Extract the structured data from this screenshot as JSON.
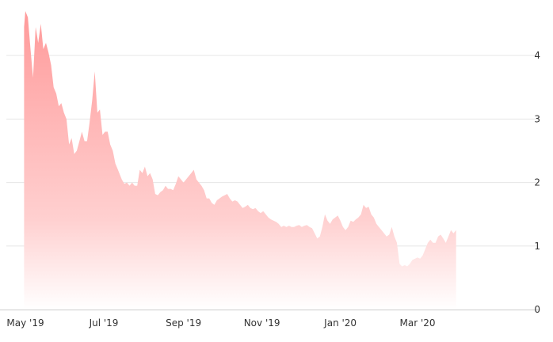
{
  "chart_data": {
    "type": "area",
    "title": "",
    "xlabel": "",
    "ylabel": "",
    "ylim": [
      0,
      4.8
    ],
    "y_ticks": [
      "0",
      "1",
      "2",
      "3",
      "4"
    ],
    "x_ticks": [
      {
        "label": "May '19",
        "date": "2019-05-01"
      },
      {
        "label": "Jul '19",
        "date": "2019-07-01"
      },
      {
        "label": "Sep '19",
        "date": "2019-09-01"
      },
      {
        "label": "Nov '19",
        "date": "2019-11-01"
      },
      {
        "label": "Jan '20",
        "date": "2020-01-01"
      },
      {
        "label": "Mar '20",
        "date": "2020-03-01"
      }
    ],
    "grid": true,
    "colors": {
      "area_top": "#ff9a9a",
      "area_bottom": "#ffffff",
      "grid": "#e6e6e6",
      "axis": "#cccccc",
      "text": "#333333"
    },
    "series": [
      {
        "values": [
          [
            "2019-04-30",
            4.45
          ],
          [
            "2019-05-01",
            4.7
          ],
          [
            "2019-05-03",
            4.6
          ],
          [
            "2019-05-05",
            4.1
          ],
          [
            "2019-05-07",
            3.65
          ],
          [
            "2019-05-09",
            4.45
          ],
          [
            "2019-05-11",
            4.2
          ],
          [
            "2019-05-13",
            4.5
          ],
          [
            "2019-05-15",
            4.1
          ],
          [
            "2019-05-17",
            4.2
          ],
          [
            "2019-05-19",
            4.05
          ],
          [
            "2019-05-21",
            3.85
          ],
          [
            "2019-05-23",
            3.5
          ],
          [
            "2019-05-25",
            3.4
          ],
          [
            "2019-05-27",
            3.2
          ],
          [
            "2019-05-29",
            3.25
          ],
          [
            "2019-05-31",
            3.1
          ],
          [
            "2019-06-02",
            3.0
          ],
          [
            "2019-06-04",
            2.6
          ],
          [
            "2019-06-06",
            2.7
          ],
          [
            "2019-06-08",
            2.45
          ],
          [
            "2019-06-10",
            2.5
          ],
          [
            "2019-06-12",
            2.65
          ],
          [
            "2019-06-14",
            2.8
          ],
          [
            "2019-06-16",
            2.65
          ],
          [
            "2019-06-18",
            2.65
          ],
          [
            "2019-06-20",
            2.95
          ],
          [
            "2019-06-22",
            3.3
          ],
          [
            "2019-06-24",
            3.75
          ],
          [
            "2019-06-26",
            3.1
          ],
          [
            "2019-06-28",
            3.15
          ],
          [
            "2019-06-30",
            2.75
          ],
          [
            "2019-07-02",
            2.8
          ],
          [
            "2019-07-04",
            2.8
          ],
          [
            "2019-07-06",
            2.6
          ],
          [
            "2019-07-08",
            2.5
          ],
          [
            "2019-07-10",
            2.3
          ],
          [
            "2019-07-12",
            2.2
          ],
          [
            "2019-07-15",
            2.05
          ],
          [
            "2019-07-17",
            1.98
          ],
          [
            "2019-07-19",
            2.0
          ],
          [
            "2019-07-21",
            1.95
          ],
          [
            "2019-07-23",
            2.0
          ],
          [
            "2019-07-25",
            1.95
          ],
          [
            "2019-07-27",
            1.95
          ],
          [
            "2019-07-29",
            2.2
          ],
          [
            "2019-07-31",
            2.15
          ],
          [
            "2019-08-02",
            2.25
          ],
          [
            "2019-08-04",
            2.1
          ],
          [
            "2019-08-06",
            2.15
          ],
          [
            "2019-08-08",
            2.05
          ],
          [
            "2019-08-10",
            1.82
          ],
          [
            "2019-08-12",
            1.8
          ],
          [
            "2019-08-14",
            1.85
          ],
          [
            "2019-08-16",
            1.88
          ],
          [
            "2019-08-18",
            1.95
          ],
          [
            "2019-08-20",
            1.9
          ],
          [
            "2019-08-22",
            1.9
          ],
          [
            "2019-08-24",
            1.88
          ],
          [
            "2019-08-26",
            1.98
          ],
          [
            "2019-08-28",
            2.1
          ],
          [
            "2019-08-30",
            2.05
          ],
          [
            "2019-09-01",
            2.0
          ],
          [
            "2019-09-03",
            2.05
          ],
          [
            "2019-09-05",
            2.1
          ],
          [
            "2019-09-07",
            2.15
          ],
          [
            "2019-09-09",
            2.2
          ],
          [
            "2019-09-11",
            2.05
          ],
          [
            "2019-09-13",
            2.0
          ],
          [
            "2019-09-15",
            1.95
          ],
          [
            "2019-09-17",
            1.88
          ],
          [
            "2019-09-19",
            1.75
          ],
          [
            "2019-09-21",
            1.75
          ],
          [
            "2019-09-23",
            1.68
          ],
          [
            "2019-09-25",
            1.65
          ],
          [
            "2019-09-27",
            1.72
          ],
          [
            "2019-09-29",
            1.75
          ],
          [
            "2019-10-01",
            1.78
          ],
          [
            "2019-10-03",
            1.8
          ],
          [
            "2019-10-05",
            1.82
          ],
          [
            "2019-10-07",
            1.75
          ],
          [
            "2019-10-09",
            1.7
          ],
          [
            "2019-10-11",
            1.72
          ],
          [
            "2019-10-13",
            1.7
          ],
          [
            "2019-10-15",
            1.65
          ],
          [
            "2019-10-17",
            1.6
          ],
          [
            "2019-10-19",
            1.62
          ],
          [
            "2019-10-21",
            1.65
          ],
          [
            "2019-10-23",
            1.6
          ],
          [
            "2019-10-25",
            1.58
          ],
          [
            "2019-10-27",
            1.6
          ],
          [
            "2019-10-29",
            1.55
          ],
          [
            "2019-10-31",
            1.52
          ],
          [
            "2019-11-02",
            1.55
          ],
          [
            "2019-11-04",
            1.5
          ],
          [
            "2019-11-06",
            1.45
          ],
          [
            "2019-11-08",
            1.42
          ],
          [
            "2019-11-10",
            1.4
          ],
          [
            "2019-11-12",
            1.38
          ],
          [
            "2019-11-14",
            1.35
          ],
          [
            "2019-11-16",
            1.3
          ],
          [
            "2019-11-18",
            1.32
          ],
          [
            "2019-11-20",
            1.3
          ],
          [
            "2019-11-22",
            1.32
          ],
          [
            "2019-11-24",
            1.3
          ],
          [
            "2019-11-26",
            1.3
          ],
          [
            "2019-11-28",
            1.32
          ],
          [
            "2019-11-30",
            1.33
          ],
          [
            "2019-12-02",
            1.3
          ],
          [
            "2019-12-04",
            1.32
          ],
          [
            "2019-12-06",
            1.33
          ],
          [
            "2019-12-08",
            1.3
          ],
          [
            "2019-12-10",
            1.28
          ],
          [
            "2019-12-12",
            1.2
          ],
          [
            "2019-12-14",
            1.12
          ],
          [
            "2019-12-16",
            1.15
          ],
          [
            "2019-12-18",
            1.3
          ],
          [
            "2019-12-20",
            1.5
          ],
          [
            "2019-12-22",
            1.4
          ],
          [
            "2019-12-24",
            1.35
          ],
          [
            "2019-12-26",
            1.42
          ],
          [
            "2019-12-28",
            1.45
          ],
          [
            "2019-12-30",
            1.48
          ],
          [
            "2020-01-01",
            1.4
          ],
          [
            "2020-01-03",
            1.3
          ],
          [
            "2020-01-05",
            1.25
          ],
          [
            "2020-01-07",
            1.3
          ],
          [
            "2020-01-09",
            1.4
          ],
          [
            "2020-01-11",
            1.38
          ],
          [
            "2020-01-13",
            1.42
          ],
          [
            "2020-01-15",
            1.45
          ],
          [
            "2020-01-17",
            1.5
          ],
          [
            "2020-01-19",
            1.65
          ],
          [
            "2020-01-21",
            1.6
          ],
          [
            "2020-01-23",
            1.62
          ],
          [
            "2020-01-25",
            1.5
          ],
          [
            "2020-01-27",
            1.45
          ],
          [
            "2020-01-29",
            1.35
          ],
          [
            "2020-01-31",
            1.3
          ],
          [
            "2020-02-02",
            1.25
          ],
          [
            "2020-02-04",
            1.2
          ],
          [
            "2020-02-06",
            1.15
          ],
          [
            "2020-02-08",
            1.18
          ],
          [
            "2020-02-10",
            1.3
          ],
          [
            "2020-02-12",
            1.15
          ],
          [
            "2020-02-14",
            1.05
          ],
          [
            "2020-02-16",
            0.72
          ],
          [
            "2020-02-18",
            0.68
          ],
          [
            "2020-02-20",
            0.7
          ],
          [
            "2020-02-22",
            0.68
          ],
          [
            "2020-02-24",
            0.72
          ],
          [
            "2020-02-26",
            0.78
          ],
          [
            "2020-02-28",
            0.8
          ],
          [
            "2020-03-01",
            0.82
          ],
          [
            "2020-03-03",
            0.8
          ],
          [
            "2020-03-05",
            0.85
          ],
          [
            "2020-03-07",
            0.95
          ],
          [
            "2020-03-09",
            1.05
          ],
          [
            "2020-03-11",
            1.1
          ],
          [
            "2020-03-13",
            1.05
          ],
          [
            "2020-03-15",
            1.05
          ],
          [
            "2020-03-17",
            1.15
          ],
          [
            "2020-03-19",
            1.18
          ],
          [
            "2020-03-21",
            1.12
          ],
          [
            "2020-03-23",
            1.05
          ],
          [
            "2020-03-25",
            1.15
          ],
          [
            "2020-03-27",
            1.25
          ],
          [
            "2020-03-29",
            1.2
          ],
          [
            "2020-03-31",
            1.25
          ]
        ]
      }
    ]
  }
}
